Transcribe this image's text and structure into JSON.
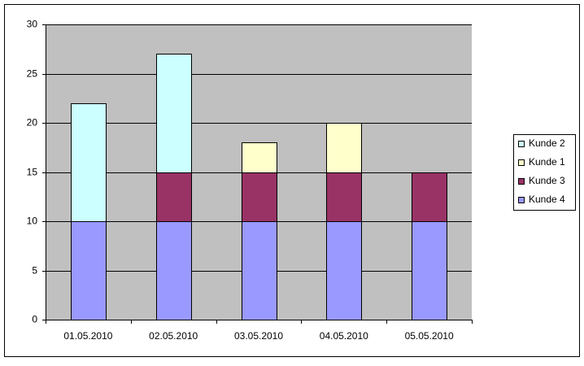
{
  "chart_data": {
    "type": "stacked_bar",
    "categories": [
      "01.05.2010",
      "02.05.2010",
      "03.05.2010",
      "04.05.2010",
      "05.05.2010"
    ],
    "series": [
      {
        "name": "Kunde 4",
        "color": "#9999ff",
        "values": [
          10,
          10,
          10,
          10,
          10
        ]
      },
      {
        "name": "Kunde 3",
        "color": "#993366",
        "values": [
          null,
          5,
          5,
          5,
          5
        ]
      },
      {
        "name": "Kunde 1",
        "color": "#ffffcc",
        "values": [
          null,
          null,
          3,
          5,
          null
        ]
      },
      {
        "name": "Kunde 2",
        "color": "#ccffff",
        "values": [
          12,
          12,
          null,
          null,
          null
        ]
      }
    ],
    "ylim": [
      0,
      30
    ],
    "yticks": [
      0,
      5,
      10,
      15,
      20,
      25,
      30
    ],
    "grid": true,
    "legend": "right"
  }
}
